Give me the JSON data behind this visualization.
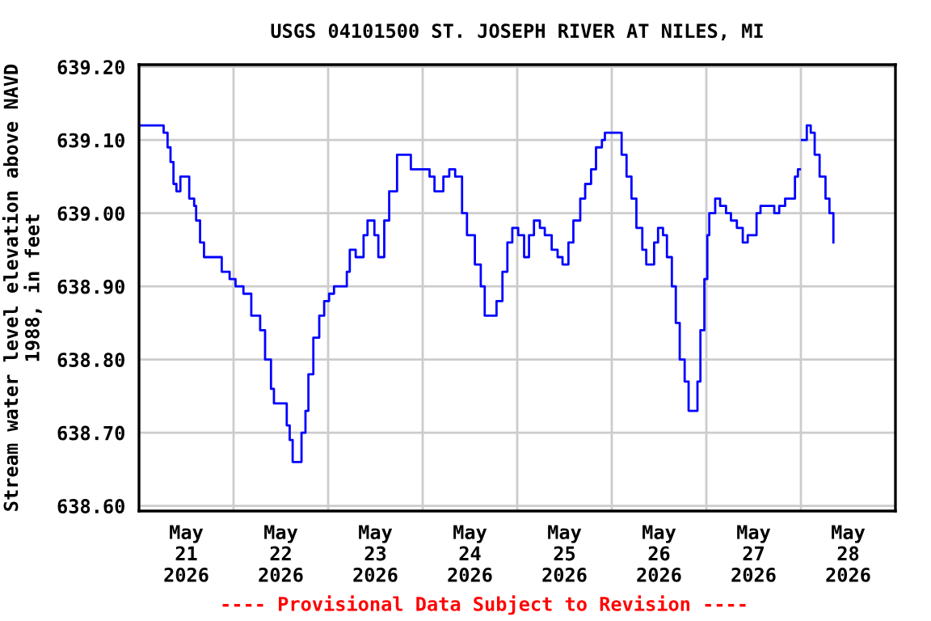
{
  "chart_data": {
    "type": "step",
    "title": "USGS 04101500 ST. JOSEPH RIVER AT NILES, MI",
    "ylabel": "Stream water level elevation above NAVD\n1988, in feet",
    "annotations": [
      "---- Provisional Data Subject to Revision ----"
    ],
    "xlim": [
      "2026-05-21T00:00",
      "2026-05-29T00:00"
    ],
    "xticks": [
      {
        "value": "2026-05-21T12:00",
        "label": "May\n21\n2026"
      },
      {
        "value": "2026-05-22T00:00",
        "label": null
      },
      {
        "value": "2026-05-22T12:00",
        "label": "May\n22\n2026"
      },
      {
        "value": "2026-05-23T00:00",
        "label": null
      },
      {
        "value": "2026-05-23T12:00",
        "label": "May\n23\n2026"
      },
      {
        "value": "2026-05-24T00:00",
        "label": null
      },
      {
        "value": "2026-05-24T12:00",
        "label": "May\n24\n2026"
      },
      {
        "value": "2026-05-25T00:00",
        "label": null
      },
      {
        "value": "2026-05-25T12:00",
        "label": "May\n25\n2026"
      },
      {
        "value": "2026-05-26T00:00",
        "label": null
      },
      {
        "value": "2026-05-26T12:00",
        "label": "May\n26\n2026"
      },
      {
        "value": "2026-05-27T00:00",
        "label": null
      },
      {
        "value": "2026-05-27T12:00",
        "label": "May\n27\n2026"
      },
      {
        "value": "2026-05-28T00:00",
        "label": null
      },
      {
        "value": "2026-05-28T12:00",
        "label": "May\n28\n2026"
      }
    ],
    "ylim": [
      638.593,
      639.203
    ],
    "yticks": [
      {
        "value": 638.6,
        "label": "638.60"
      },
      {
        "value": 638.7,
        "label": "638.70"
      },
      {
        "value": 638.8,
        "label": "638.80"
      },
      {
        "value": 638.9,
        "label": "638.90"
      },
      {
        "value": 639.0,
        "label": "639.00"
      },
      {
        "value": 639.1,
        "label": "639.10"
      },
      {
        "value": 639.2,
        "label": "639.20"
      }
    ],
    "grid": true,
    "marker": "none",
    "line_style": "solid",
    "series": [
      {
        "color": "#0000ff",
        "x": [
          "2026-05-21T00:00",
          "2026-05-21T03:45",
          "2026-05-21T06:15",
          "2026-05-21T07:15",
          "2026-05-21T08:00",
          "2026-05-21T08:45",
          "2026-05-21T09:30",
          "2026-05-21T10:30",
          "2026-05-21T11:45",
          "2026-05-21T12:45",
          "2026-05-21T14:00",
          "2026-05-21T14:30",
          "2026-05-21T15:30",
          "2026-05-21T16:30",
          "2026-05-21T19:45",
          "2026-05-21T21:00",
          "2026-05-21T23:00",
          "2026-05-22T00:30",
          "2026-05-22T02:30",
          "2026-05-22T04:30",
          "2026-05-22T06:45",
          "2026-05-22T08:00",
          "2026-05-22T09:30",
          "2026-05-22T10:15",
          "2026-05-22T12:30",
          "2026-05-22T13:30",
          "2026-05-22T14:15",
          "2026-05-22T15:00",
          "2026-05-22T16:15",
          "2026-05-22T17:15",
          "2026-05-22T18:15",
          "2026-05-22T19:00",
          "2026-05-22T20:15",
          "2026-05-22T21:45",
          "2026-05-22T23:00",
          "2026-05-23T00:15",
          "2026-05-23T01:30",
          "2026-05-23T04:00",
          "2026-05-23T04:45",
          "2026-05-23T05:30",
          "2026-05-23T06:15",
          "2026-05-23T07:00",
          "2026-05-23T08:00",
          "2026-05-23T09:00",
          "2026-05-23T10:00",
          "2026-05-23T11:00",
          "2026-05-23T11:45",
          "2026-05-23T12:45",
          "2026-05-23T13:30",
          "2026-05-23T14:15",
          "2026-05-23T15:30",
          "2026-05-23T17:30",
          "2026-05-23T19:30",
          "2026-05-23T21:00",
          "2026-05-23T22:15",
          "2026-05-24T01:45",
          "2026-05-24T03:00",
          "2026-05-24T04:15",
          "2026-05-24T05:15",
          "2026-05-24T06:45",
          "2026-05-24T08:15",
          "2026-05-24T10:00",
          "2026-05-24T11:15",
          "2026-05-24T13:15",
          "2026-05-24T14:45",
          "2026-05-24T15:45",
          "2026-05-24T17:30",
          "2026-05-24T18:45",
          "2026-05-24T20:15",
          "2026-05-24T21:30",
          "2026-05-24T22:45",
          "2026-05-25T00:15",
          "2026-05-25T01:45",
          "2026-05-25T03:00",
          "2026-05-25T04:15",
          "2026-05-25T05:45",
          "2026-05-25T07:00",
          "2026-05-25T08:45",
          "2026-05-25T10:15",
          "2026-05-25T11:30",
          "2026-05-25T13:00",
          "2026-05-25T14:15",
          "2026-05-25T16:00",
          "2026-05-25T17:15",
          "2026-05-25T18:45",
          "2026-05-25T20:00",
          "2026-05-25T21:30",
          "2026-05-25T22:15",
          "2026-05-26T01:30",
          "2026-05-26T02:30",
          "2026-05-26T03:45",
          "2026-05-26T05:00",
          "2026-05-26T06:15",
          "2026-05-26T07:45",
          "2026-05-26T08:45",
          "2026-05-26T09:45",
          "2026-05-26T10:45",
          "2026-05-26T11:45",
          "2026-05-26T13:00",
          "2026-05-26T14:00",
          "2026-05-26T15:15",
          "2026-05-26T16:15",
          "2026-05-26T17:15",
          "2026-05-26T18:30",
          "2026-05-26T19:30",
          "2026-05-26T21:00",
          "2026-05-26T21:45",
          "2026-05-26T22:30",
          "2026-05-26T23:30",
          "2026-05-27T00:15",
          "2026-05-27T00:45",
          "2026-05-27T02:15",
          "2026-05-27T03:30",
          "2026-05-27T05:00",
          "2026-05-27T06:15",
          "2026-05-27T07:45",
          "2026-05-27T09:15",
          "2026-05-27T10:30",
          "2026-05-27T11:30",
          "2026-05-27T12:45",
          "2026-05-27T13:45",
          "2026-05-27T15:45",
          "2026-05-27T17:15",
          "2026-05-27T18:30",
          "2026-05-27T20:00",
          "2026-05-27T21:45",
          "2026-05-27T22:30",
          "2026-05-27T23:15",
          "2026-05-27T23:45",
          "2026-05-28T00:15",
          "2026-05-28T01:30",
          "2026-05-28T02:30",
          "2026-05-28T03:30",
          "2026-05-28T04:45",
          "2026-05-28T06:15",
          "2026-05-28T07:15",
          "2026-05-28T08:15"
        ],
        "values": [
          639.12,
          639.12,
          639.11,
          639.09,
          639.07,
          639.04,
          639.03,
          639.05,
          639.05,
          639.02,
          639.01,
          638.99,
          638.96,
          638.94,
          638.94,
          638.92,
          638.91,
          638.9,
          638.89,
          638.86,
          638.84,
          638.8,
          638.76,
          638.74,
          638.74,
          638.71,
          638.69,
          638.66,
          638.66,
          638.7,
          638.73,
          638.78,
          638.83,
          638.86,
          638.88,
          638.89,
          638.9,
          638.9,
          638.92,
          638.95,
          638.95,
          638.94,
          638.94,
          638.97,
          638.99,
          638.99,
          638.97,
          638.94,
          638.94,
          638.99,
          639.03,
          639.08,
          639.08,
          639.06,
          639.06,
          639.05,
          639.03,
          639.03,
          639.05,
          639.06,
          639.05,
          639.0,
          638.97,
          638.93,
          638.9,
          638.86,
          638.86,
          638.88,
          638.92,
          638.96,
          638.98,
          638.97,
          638.94,
          638.97,
          638.99,
          638.98,
          638.97,
          638.95,
          638.94,
          638.93,
          638.96,
          638.99,
          639.02,
          639.04,
          639.06,
          639.09,
          639.1,
          639.11,
          639.11,
          639.08,
          639.05,
          639.02,
          638.98,
          638.95,
          638.93,
          638.93,
          638.96,
          638.98,
          638.97,
          638.94,
          638.9,
          638.85,
          638.8,
          638.77,
          638.73,
          638.73,
          638.77,
          638.84,
          638.91,
          638.97,
          639.0,
          639.02,
          639.01,
          639.0,
          638.99,
          638.98,
          638.96,
          638.97,
          638.97,
          639.0,
          639.01,
          639.01,
          639.0,
          639.01,
          639.02,
          639.02,
          639.05,
          639.06,
          null,
          639.1,
          639.12,
          639.11,
          639.08,
          639.05,
          639.02,
          639.0,
          638.96
        ]
      }
    ]
  }
}
